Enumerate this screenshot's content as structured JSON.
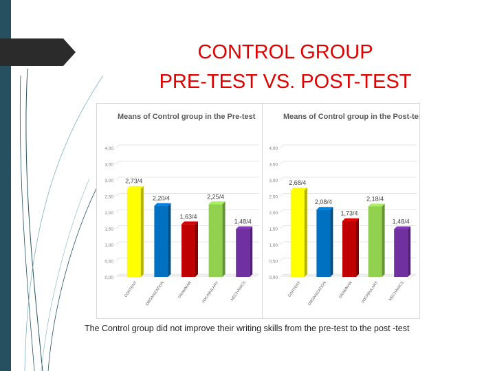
{
  "slide": {
    "title_line1": "CONTROL GROUP",
    "title_line2": "PRE-TEST VS. POST-TEST",
    "caption": "The Control group did not improve their  writing skills from the pre-test to the post -test"
  },
  "chart_data": [
    {
      "type": "bar",
      "title": "Means of Control group in the Pre-test",
      "categories": [
        "CONTENT",
        "ORGANIZATION",
        "GRAMMAR",
        "VOCABULARY",
        "MECHANICS"
      ],
      "values": [
        2.73,
        2.2,
        1.63,
        2.25,
        1.48
      ],
      "data_labels": [
        "2,73/4",
        "2,20/4",
        "1,63/4",
        "2,25/4",
        "1,48/4"
      ],
      "ylim": [
        0,
        4
      ],
      "yticks": [
        "0,00",
        "0,50",
        "1,00",
        "1,50",
        "2,00",
        "2,50",
        "3,00",
        "3,50",
        "4,00"
      ],
      "grid": true,
      "colors": [
        "#ffff00",
        "#0070c0",
        "#c00000",
        "#92d050",
        "#7030a0"
      ]
    },
    {
      "type": "bar",
      "title": "Means of Control group in the Post-test",
      "categories": [
        "CONTENT",
        "ORGANIZATION",
        "GRAMMAR",
        "VOCABULARY",
        "MECHANICS"
      ],
      "values": [
        2.68,
        2.08,
        1.73,
        2.18,
        1.48
      ],
      "data_labels": [
        "2,68/4",
        "2,08/4",
        "1,73/4",
        "2,18/4",
        "1,48/4"
      ],
      "ylim": [
        0,
        4
      ],
      "yticks": [
        "0,00",
        "0,50",
        "1,00",
        "1,50",
        "2,00",
        "2,50",
        "3,00",
        "3,50",
        "4,00"
      ],
      "grid": true,
      "colors": [
        "#ffff00",
        "#0070c0",
        "#c00000",
        "#92d050",
        "#7030a0"
      ]
    }
  ]
}
